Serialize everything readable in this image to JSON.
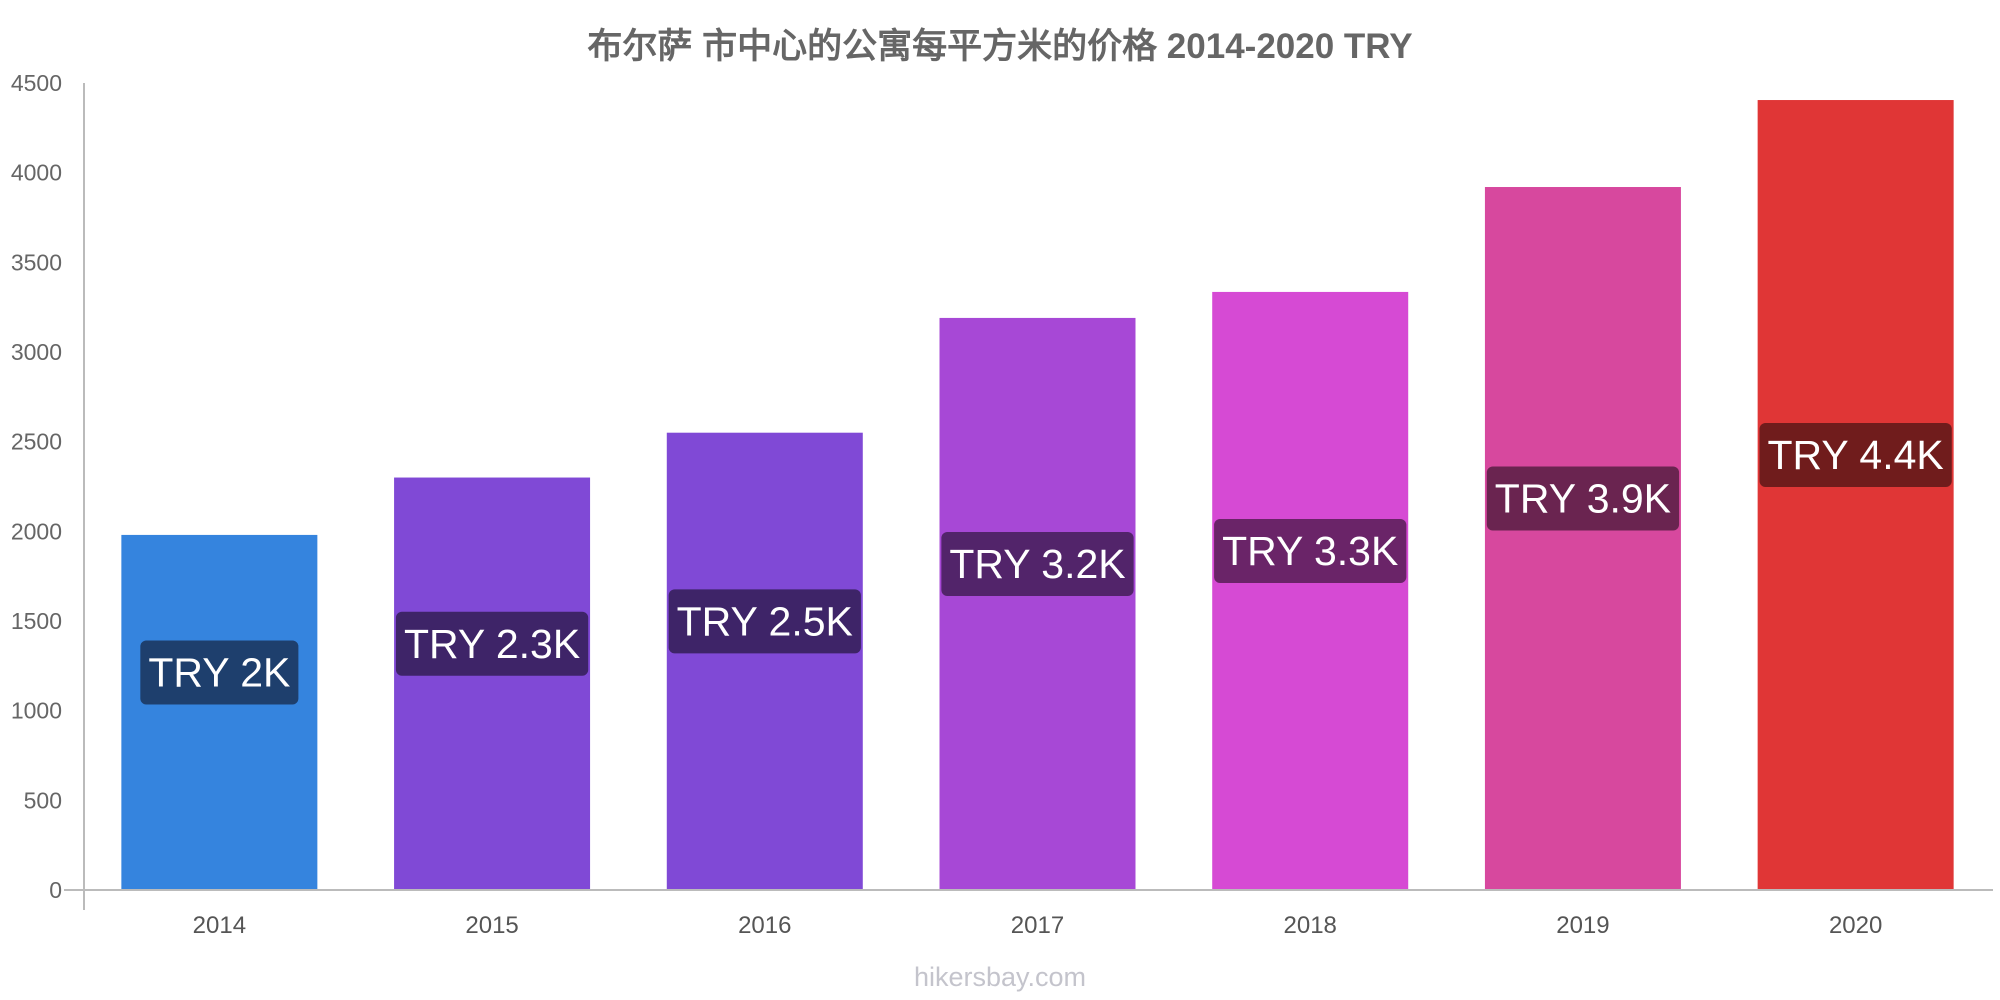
{
  "chart_data": {
    "type": "bar",
    "title": "布尔萨 市中心的公寓每平方米的价格 2014-2020 TRY",
    "xlabel": "",
    "ylabel": "",
    "categories": [
      "2014",
      "2015",
      "2016",
      "2017",
      "2018",
      "2019",
      "2020"
    ],
    "values": [
      1980,
      2300,
      2550,
      3190,
      3335,
      3920,
      4405
    ],
    "data_labels": [
      "TRY 2K",
      "TRY 2.3K",
      "TRY 2.5K",
      "TRY 3.2K",
      "TRY 3.3K",
      "TRY 3.9K",
      "TRY 4.4K"
    ],
    "bar_colors": [
      "#3584de",
      "#8049d6",
      "#8049d6",
      "#a748d6",
      "#d64ad4",
      "#d7489e",
      "#e03636"
    ],
    "label_bg_colors": [
      "#1e3f6d",
      "#3e2468",
      "#3e2468",
      "#52246a",
      "#6a2468",
      "#6a2450",
      "#701c1c"
    ],
    "ylim": [
      0,
      4500
    ],
    "yticks": [
      0,
      500,
      1000,
      1500,
      2000,
      2500,
      3000,
      3500,
      4000,
      4500
    ],
    "grid": false,
    "legend": "none"
  },
  "watermark": "hikersbay.com",
  "colors": {
    "axis": "#bbbbbb",
    "text": "#666666"
  }
}
